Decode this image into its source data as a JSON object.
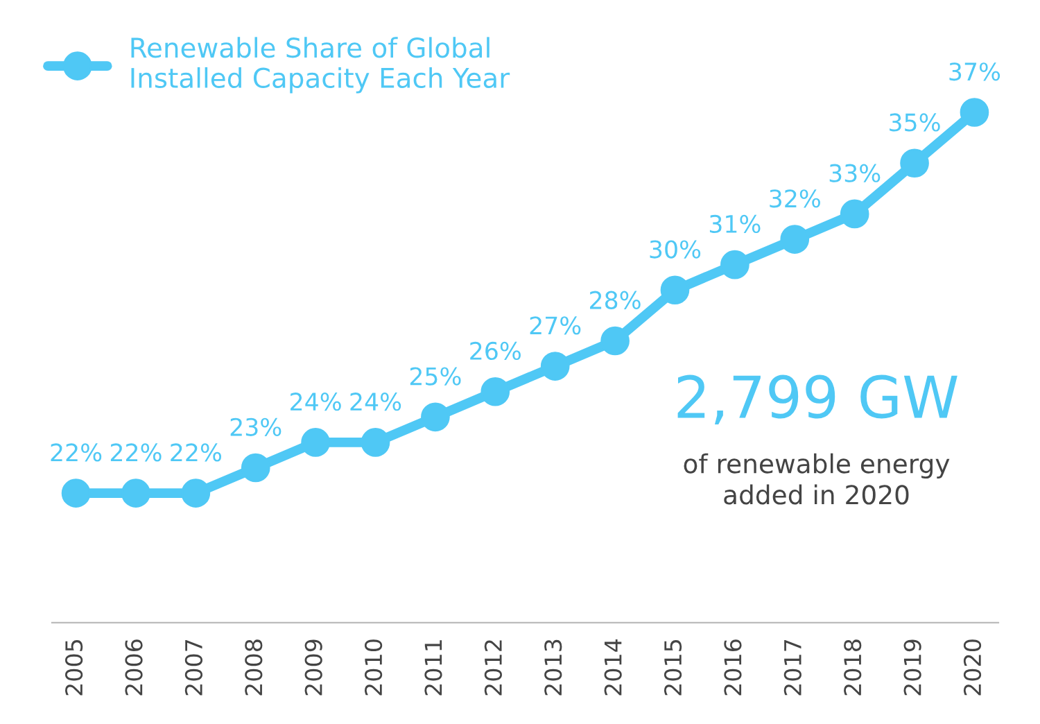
{
  "chart_data": {
    "type": "line",
    "categories": [
      "2005",
      "2006",
      "2007",
      "2008",
      "2009",
      "2010",
      "2011",
      "2012",
      "2013",
      "2014",
      "2015",
      "2016",
      "2017",
      "2018",
      "2019",
      "2020"
    ],
    "series": [
      {
        "name": "Renewable Share of Global\nInstalled Capacity Each Year",
        "color": "#4fc8f5",
        "values": [
          22,
          22,
          22,
          23,
          24,
          24,
          25,
          26,
          27,
          28,
          30,
          31,
          32,
          33,
          35,
          37
        ],
        "value_labels": [
          "22%",
          "22%",
          "22%",
          "23%",
          "24%",
          "24%",
          "25%",
          "26%",
          "27%",
          "28%",
          "30%",
          "31%",
          "32%",
          "33%",
          "35%",
          "37%"
        ]
      }
    ],
    "tick_labels": "x",
    "grid": false,
    "legend": "top left",
    "marker": "circle",
    "line_style": "solid",
    "annotations": [
      "2,799 GW",
      "of renewable energy\nadded in 2020"
    ]
  }
}
